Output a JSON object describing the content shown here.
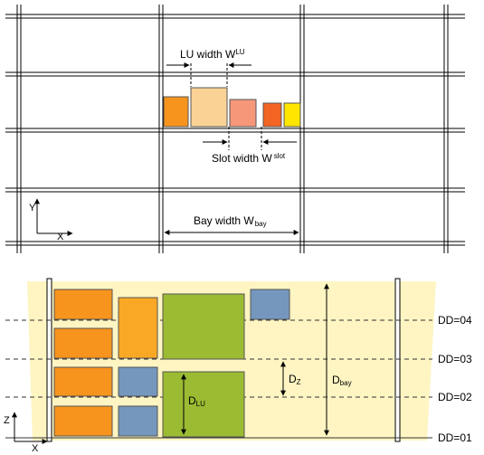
{
  "top_view": {
    "lu_width_label": "LU width W",
    "lu_width_sup": "LU",
    "slot_width_label": "Slot width W",
    "slot_width_sup": "slot",
    "bay_width_label": "Bay width W",
    "bay_width_sub": "bay",
    "axis_y": "Y",
    "axis_x": "X"
  },
  "side_view": {
    "levels": [
      {
        "label": "DD=04"
      },
      {
        "label": "DD=03"
      },
      {
        "label": "DD=02"
      },
      {
        "label": "DD=01"
      }
    ],
    "dz_label": "D",
    "dz_sub": "Z",
    "dbay_label": "D",
    "dbay_sub": "bay",
    "dlu_label": "D",
    "dlu_sub": "LU",
    "axis_z": "Z",
    "axis_x": "X"
  },
  "colors": {
    "orange": "#F7941D",
    "light_orange": "#FBD295",
    "salmon": "#F7977A",
    "dark_orange": "#F26522",
    "yellow": "#FFE600",
    "green": "#9BBB33",
    "blue": "#7597BD",
    "panel": "#FEF5C2"
  }
}
